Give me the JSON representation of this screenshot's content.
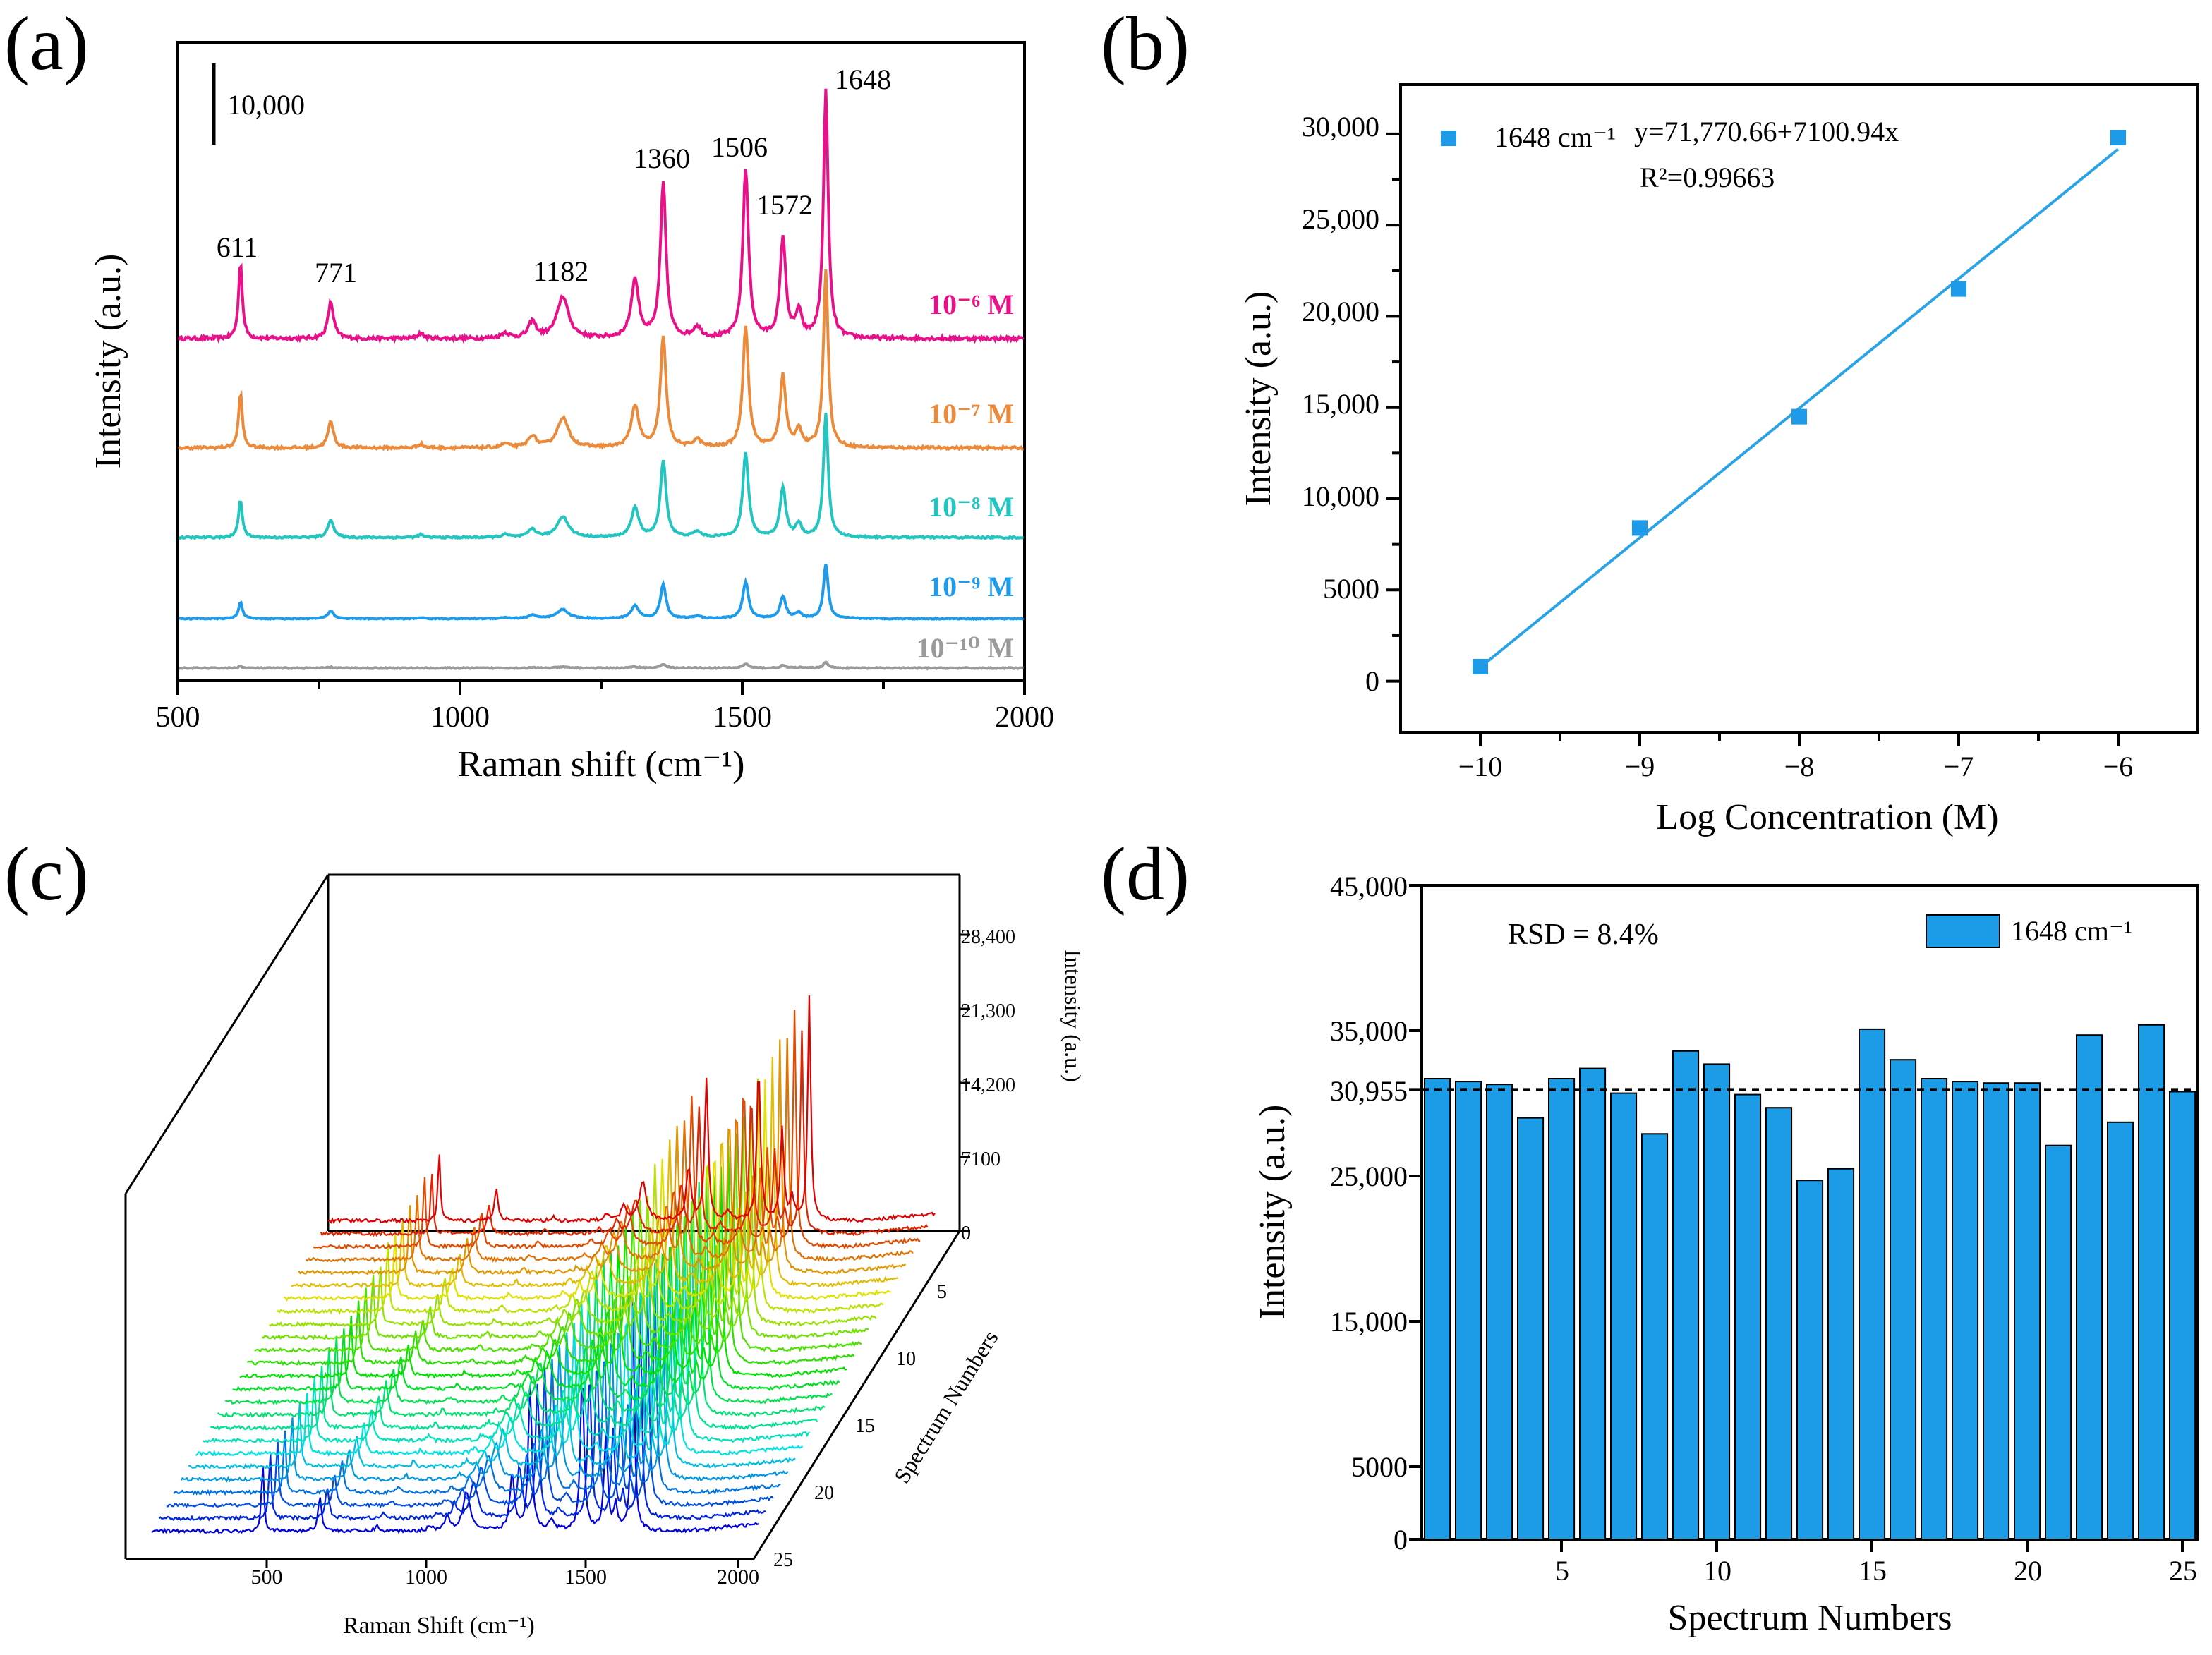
{
  "figure": {
    "panel_labels": [
      "(a)",
      "(b)",
      "(c)",
      "(d)"
    ]
  },
  "colors": {
    "c1e6": "#e8118a",
    "c1e7": "#ec8a3c",
    "c1e8": "#22c5c0",
    "c1e9": "#1e9bea",
    "c1e10": "#9a9a9a",
    "fit": "#29a3e6",
    "marker": "#1d9be8",
    "bar": "#1c9be6"
  },
  "chart_data": [
    {
      "id": "a",
      "type": "line",
      "title": "",
      "xlabel": "Raman shift (cm⁻¹)",
      "ylabel": "Intensity (a.u.)",
      "xlim": [
        500,
        2000
      ],
      "x_ticks": [
        "500",
        "1000",
        "1500",
        "2000"
      ],
      "scale_bar_label": "10,000",
      "peaks": [
        "611",
        "771",
        "1182",
        "1360",
        "1506",
        "1572",
        "1648"
      ],
      "peak_positions": [
        611,
        771,
        1182,
        1360,
        1506,
        1572,
        1648
      ],
      "series": [
        {
          "name": "10⁻⁶ M",
          "scale": 1.0
        },
        {
          "name": "10⁻⁷ M",
          "scale": 0.72
        },
        {
          "name": "10⁻⁸ M",
          "scale": 0.5
        },
        {
          "name": "10⁻⁹ M",
          "scale": 0.22
        },
        {
          "name": "10⁻¹⁰ M",
          "scale": 0.025
        }
      ]
    },
    {
      "id": "b",
      "type": "scatter",
      "xlabel": "Log Concentration (M)",
      "ylabel": "Intensity (a.u.)",
      "xlim": [
        -10.5,
        -5.5
      ],
      "ylim": [
        -2800,
        32700
      ],
      "x_ticks": [
        "−10",
        "−9",
        "−8",
        "−7",
        "−6"
      ],
      "y_ticks": [
        "0",
        "5000",
        "10,000",
        "15,000",
        "20,000",
        "25,000",
        "30,000"
      ],
      "x": [
        -10,
        -9,
        -8,
        -7,
        -6
      ],
      "y": [
        800,
        8400,
        14500,
        21500,
        29800
      ],
      "legend": "1648 cm⁻¹",
      "equation": "y=71,770.66+7100.94x",
      "r2": "R²=0.99663",
      "fit": {
        "intercept": 71770.66,
        "slope": 7100.94
      }
    },
    {
      "id": "c",
      "type": "line",
      "xlabel": "Raman Shift (cm⁻¹)",
      "ylabel": "Intensity (a.u.)",
      "depth_label": "Spectrum Numbers",
      "x_ticks": [
        "500",
        "1000",
        "1500",
        "2000"
      ],
      "z_ticks": [
        "0",
        "7100",
        "14,200",
        "21,300",
        "28,400"
      ],
      "depth_ticks": [
        "5",
        "10",
        "15",
        "20",
        "25"
      ],
      "n_spectra": 25
    },
    {
      "id": "d",
      "type": "bar",
      "xlabel": "Spectrum Numbers",
      "ylabel": "Intensity (a.u.)",
      "xlim": [
        0.5,
        25.5
      ],
      "ylim": [
        0,
        45000
      ],
      "x_ticks": [
        "5",
        "10",
        "15",
        "20",
        "25"
      ],
      "y_ticks": [
        "0",
        "5000",
        "15,000",
        "25,000",
        "30,955",
        "35,000",
        "45,000"
      ],
      "categories": [
        1,
        2,
        3,
        4,
        5,
        6,
        7,
        8,
        9,
        10,
        11,
        12,
        13,
        14,
        15,
        16,
        17,
        18,
        19,
        20,
        21,
        22,
        23,
        24,
        25
      ],
      "values": [
        31700,
        31500,
        31300,
        29000,
        31700,
        32400,
        30700,
        27900,
        33600,
        32700,
        30600,
        29700,
        24700,
        25500,
        35100,
        33000,
        31700,
        31500,
        31400,
        31400,
        27100,
        34700,
        28700,
        35400,
        30800
      ],
      "mean": 30955,
      "legend": "1648 cm⁻¹",
      "annotation": "RSD = 8.4%"
    }
  ]
}
